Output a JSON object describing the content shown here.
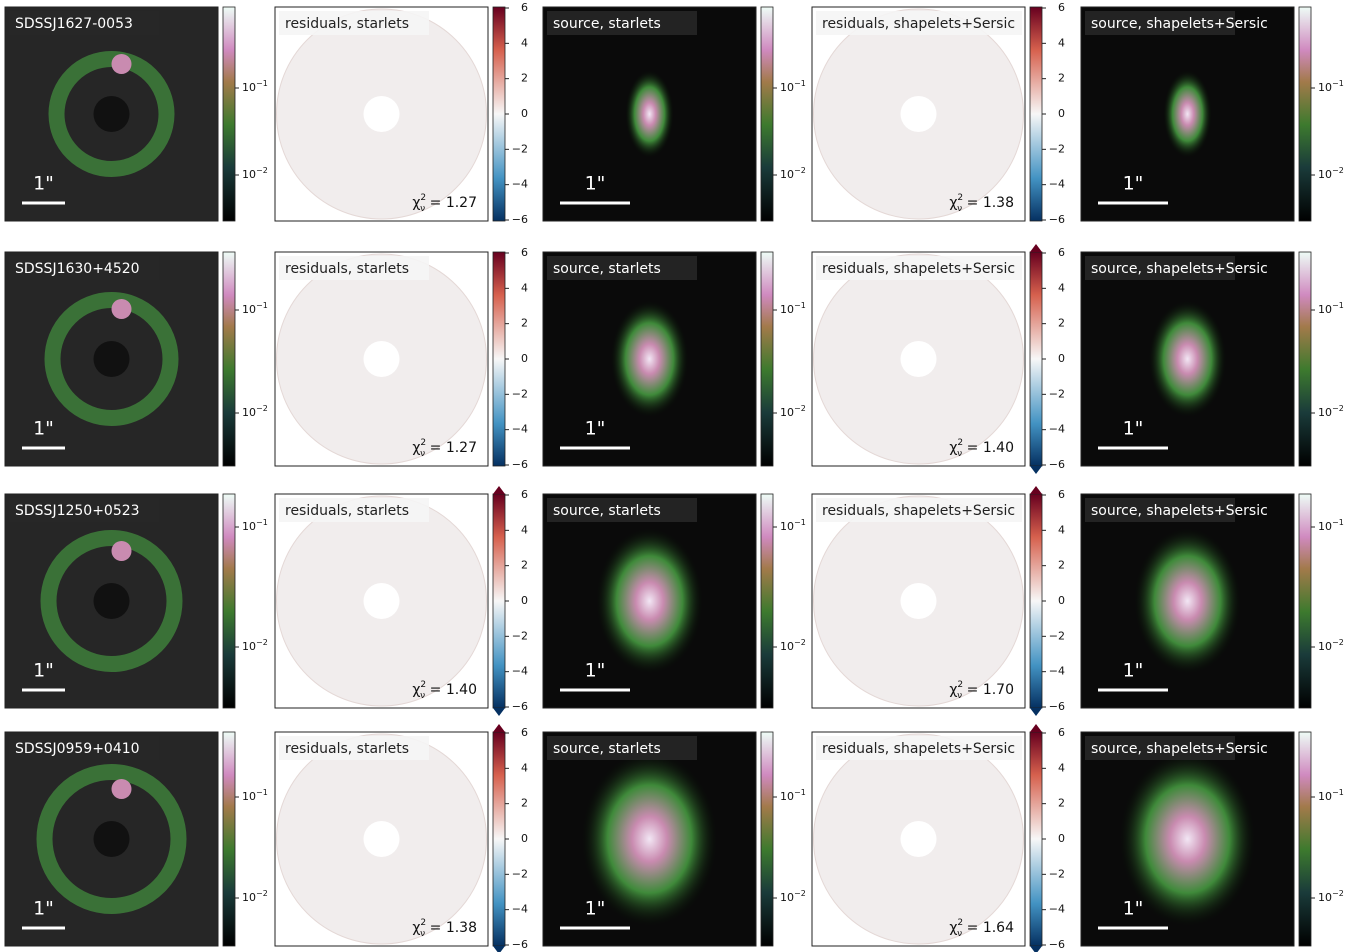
{
  "scale_bar": "1\"",
  "panel_titles": [
    "residuals, starlets",
    "source, starlets",
    "residuals, shapelets+Sersic",
    "source, shapelets+Sersic"
  ],
  "chi2_symbol": {
    "base": "χ",
    "sub": "ν",
    "sup": "2",
    "eq": " = "
  },
  "log_ticks": [
    {
      "base": "10",
      "exp": "−1"
    },
    {
      "base": "10",
      "exp": "−2"
    }
  ],
  "residual_ticks": [
    "6",
    "4",
    "2",
    "0",
    "−2",
    "−4",
    "−6"
  ],
  "rows": [
    {
      "name": "SDSSJ1627-0053",
      "chi2": [
        "1.27",
        "1.38"
      ]
    },
    {
      "name": "SDSSJ1630+4520",
      "chi2": [
        "1.27",
        "1.40"
      ]
    },
    {
      "name": "SDSSJ1250+0523",
      "chi2": [
        "1.40",
        "1.70"
      ]
    },
    {
      "name": "SDSSJ0959+0410",
      "chi2": [
        "1.38",
        "1.64"
      ]
    }
  ]
}
